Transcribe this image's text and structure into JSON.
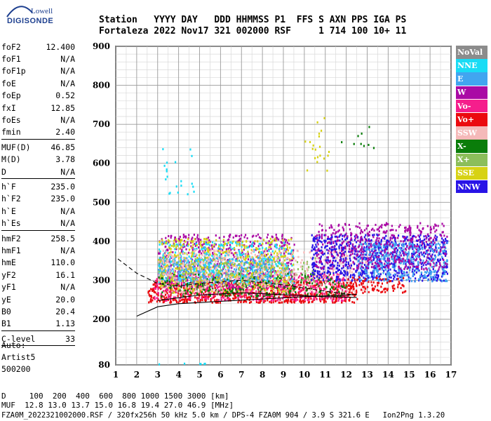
{
  "logo": {
    "line1": "Lowell",
    "line2": "DIGISONDE"
  },
  "header": {
    "row1": "Station   YYYY DAY   DDD HHMMSS P1  FFS S AXN PPS IGA PS",
    "row2": "Fortaleza 2022 Nov17 321 002000 RSF     1 714 100 10+ 11"
  },
  "params": [
    {
      "name": "foF2",
      "value": "12.400"
    },
    {
      "name": "foF1",
      "value": "N/A"
    },
    {
      "name": "foF1p",
      "value": "N/A"
    },
    {
      "name": "foE",
      "value": "N/A"
    },
    {
      "name": "foEp",
      "value": "0.52"
    },
    {
      "name": "fxI",
      "value": "12.85"
    },
    {
      "name": "foEs",
      "value": "N/A"
    },
    {
      "name": "fmin",
      "value": "2.40"
    },
    {
      "sep": true
    },
    {
      "name": "MUF(D)",
      "value": "46.85"
    },
    {
      "name": "M(D)",
      "value": "3.78"
    },
    {
      "name": "D",
      "value": "N/A"
    },
    {
      "sep": true
    },
    {
      "name": "h`F",
      "value": "235.0"
    },
    {
      "name": "h`F2",
      "value": "235.0"
    },
    {
      "name": "h`E",
      "value": "N/A"
    },
    {
      "name": "h`Es",
      "value": "N/A"
    },
    {
      "sep": true
    },
    {
      "name": "hmF2",
      "value": "258.5"
    },
    {
      "name": "hmF1",
      "value": "N/A"
    },
    {
      "name": "hmE",
      "value": "110.0"
    },
    {
      "name": "yF2",
      "value": "16.1"
    },
    {
      "name": "yF1",
      "value": "N/A"
    },
    {
      "name": "yE",
      "value": "20.0"
    },
    {
      "name": "B0",
      "value": "20.4"
    },
    {
      "name": "B1",
      "value": "1.13"
    },
    {
      "sep": true
    },
    {
      "name": "C-level",
      "value": "33"
    },
    {
      "sep": true
    }
  ],
  "auto": [
    "Auto:",
    "Artist5",
    "500200"
  ],
  "legend": [
    {
      "label": "NoVal",
      "color": "#8c8c8c"
    },
    {
      "label": "NNE",
      "color": "#19dcf5"
    },
    {
      "label": "E",
      "color": "#41a5f0"
    },
    {
      "label": "W",
      "color": "#aa0aa5"
    },
    {
      "label": "Vo-",
      "color": "#f51e8c"
    },
    {
      "label": "Vo+",
      "color": "#eb0a0f"
    },
    {
      "label": "SSW",
      "color": "#f5b9b9"
    },
    {
      "label": "X-",
      "color": "#0a7d0a"
    },
    {
      "label": "X+",
      "color": "#8cbe5a"
    },
    {
      "label": "SSE",
      "color": "#d7d214"
    },
    {
      "label": "NNW",
      "color": "#2814e6"
    }
  ],
  "bottom": {
    "line1": "D     100  200  400  600  800 1000 1500 3000 [km]",
    "line2": "MUF  12.8 13.0 13.7 15.0 16.8 19.4 27.0 46.9 [MHz]",
    "line3": "FZA0M_2022321002000.RSF / 320fx256h 50 kHz 5.0 km / DPS-4 FZA0M 904 / 3.9 S 321.6 E   Ion2Png 1.3.20"
  },
  "chart_data": {
    "type": "scatter",
    "title": "",
    "xlabel": "",
    "ylabel": "",
    "xlim": [
      1,
      17
    ],
    "ylim": [
      80,
      900
    ],
    "xticks": [
      1,
      2,
      3,
      4,
      5,
      6,
      7,
      8,
      9,
      10,
      11,
      12,
      13,
      14,
      15,
      16,
      17
    ],
    "yticks": [
      80,
      200,
      300,
      400,
      500,
      600,
      700,
      800,
      900
    ],
    "grid": true,
    "legend_position": "right",
    "y_scale": "piecewise",
    "clusters": [
      {
        "series": "Vo+",
        "x": [
          2.5,
          12.5
        ],
        "y": [
          245,
          300
        ],
        "density": 0.9
      },
      {
        "series": "Vo-",
        "x": [
          2.8,
          12.0
        ],
        "y": [
          250,
          320
        ],
        "density": 0.5
      },
      {
        "series": "W",
        "x": [
          3.0,
          9.5
        ],
        "y": [
          280,
          420
        ],
        "density": 0.4
      },
      {
        "series": "E",
        "x": [
          3.0,
          8.5
        ],
        "y": [
          300,
          360
        ],
        "density": 0.7
      },
      {
        "series": "NNE",
        "x": [
          3.0,
          9.5
        ],
        "y": [
          290,
          400
        ],
        "density": 0.35
      },
      {
        "series": "SSE",
        "x": [
          3.0,
          9.5
        ],
        "y": [
          270,
          410
        ],
        "density": 0.3
      },
      {
        "series": "X-",
        "x": [
          3.0,
          12.0
        ],
        "y": [
          260,
          320
        ],
        "density": 0.25
      },
      {
        "series": "X+",
        "x": [
          3.0,
          10.5
        ],
        "y": [
          290,
          360
        ],
        "density": 0.2
      },
      {
        "series": "SSW",
        "x": [
          3.0,
          13.0
        ],
        "y": [
          270,
          380
        ],
        "density": 0.25
      },
      {
        "series": "NNW",
        "x": [
          10.3,
          16.8
        ],
        "y": [
          300,
          420
        ],
        "density": 0.6
      },
      {
        "series": "E",
        "x": [
          12.5,
          16.8
        ],
        "y": [
          300,
          400
        ],
        "density": 0.5
      },
      {
        "series": "W",
        "x": [
          10.5,
          16.8
        ],
        "y": [
          330,
          450
        ],
        "density": 0.35
      },
      {
        "series": "Vo+",
        "x": [
          12.0,
          14.8
        ],
        "y": [
          270,
          310
        ],
        "density": 0.4
      },
      {
        "series": "SSE",
        "x": [
          10.0,
          11.2
        ],
        "y": [
          560,
          720
        ],
        "density": 0.06
      },
      {
        "series": "X-",
        "x": [
          11.5,
          13.3
        ],
        "y": [
          640,
          700
        ],
        "density": 0.05
      },
      {
        "series": "NNE",
        "x": [
          3.2,
          4.8
        ],
        "y": [
          520,
          640
        ],
        "density": 0.06
      },
      {
        "series": "NNE",
        "x": [
          3.0,
          5.5
        ],
        "y": [
          84,
          86
        ],
        "density": 0.4
      }
    ],
    "curves": [
      {
        "style": "solid",
        "x": [
          2.0,
          3.0,
          4.0,
          6.0,
          8.0,
          10.0,
          12.0,
          12.5
        ],
        "y": [
          208,
          232,
          240,
          246,
          252,
          258,
          262,
          264
        ]
      },
      {
        "style": "dashed",
        "x": [
          1.1,
          2.0,
          3.0,
          4.0,
          5.0,
          7.0,
          9.0,
          11.0,
          12.4
        ],
        "y": [
          355,
          318,
          292,
          285,
          292,
          300,
          288,
          272,
          262
        ]
      },
      {
        "style": "solid",
        "x": [
          3.0,
          5.0,
          7.0,
          9.0,
          11.0,
          12.5
        ],
        "y": [
          248,
          262,
          268,
          263,
          258,
          256
        ]
      }
    ]
  }
}
